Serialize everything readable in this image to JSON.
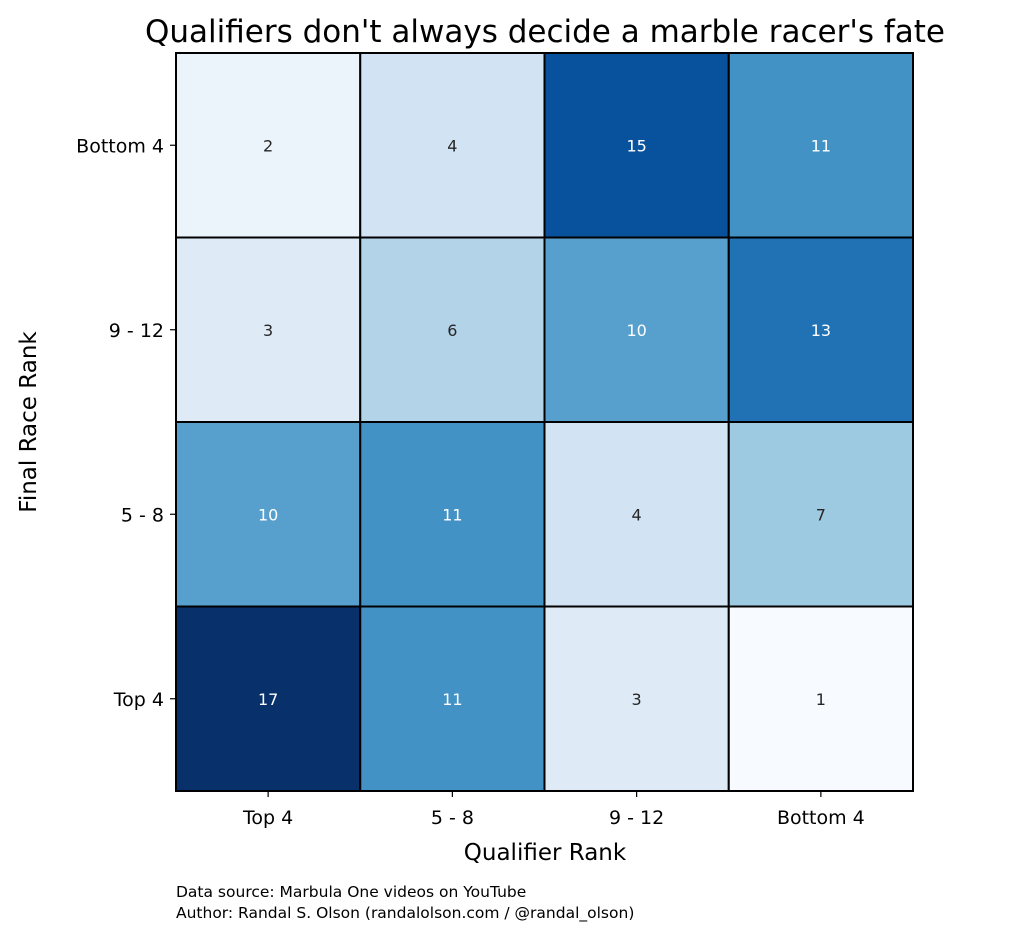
{
  "chart_data": {
    "type": "heatmap",
    "title": "Qualifiers don't always decide a marble racer's fate",
    "xlabel": "Qualifier Rank",
    "ylabel": "Final Race Rank",
    "x_categories": [
      "Top 4",
      "5 - 8",
      "9 - 12",
      "Bottom 4"
    ],
    "y_categories_top_to_bottom": [
      "Bottom 4",
      "9 - 12",
      "5 - 8",
      "Top 4"
    ],
    "values": [
      [
        2,
        4,
        15,
        11
      ],
      [
        3,
        6,
        10,
        13
      ],
      [
        10,
        11,
        4,
        7
      ],
      [
        17,
        11,
        3,
        1
      ]
    ],
    "colormap": "Blues",
    "value_range": [
      1,
      17
    ],
    "cell_border_color": "#000000",
    "annotations": true
  },
  "footer": {
    "line1": "Data source: Marbula One videos on YouTube",
    "line2": "Author: Randal S. Olson (randalolson.com / @randal_olson)"
  }
}
